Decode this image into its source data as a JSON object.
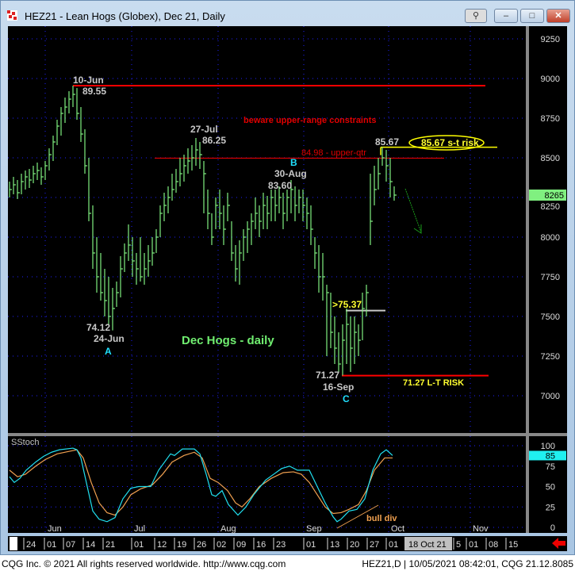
{
  "window": {
    "title": "HEZ21 - Lean Hogs (Globex), Dec 21, Daily",
    "buttons": {
      "link": "link-icon",
      "minimize": "–",
      "maximize": "□",
      "close": "✕"
    }
  },
  "footer": {
    "left": "CQG Inc. © 2021 All rights reserved worldwide. http://www.cqg.com",
    "right": "HEZ21,D | 10/05/2021 08:42:01, CQG 21.12.8085"
  },
  "colors": {
    "bars": "#80f080",
    "fast_stoch": "#20e0f0",
    "slow_stoch": "#f0a050",
    "grid": "#2020ff",
    "background": "#000000",
    "risk_line": "#ff0000",
    "st_risk": "#ffff00"
  },
  "annotations": {
    "jun10_date": "10-Jun",
    "jun10_price": "89.55",
    "jul27_date": "27-Jul",
    "jul27_price": "86.25",
    "beware": "beware upper-range constraints",
    "upper_qtr": "84.98 - upper-qtr",
    "high_recent": "85.67",
    "st_risk": "85.67 s-t risk",
    "b_label": "B",
    "aug30_date": "30-Aug",
    "aug30_price": "83.60",
    "gt7537": ">75.37",
    "jun24_price": "74.12",
    "jun24_date": "24-Jun",
    "a_label": "A",
    "chart_title": "Dec Hogs - daily",
    "sep16_price": "71.27",
    "sep16_date": "16-Sep",
    "c_label": "C",
    "lt_risk": "71.27 L-T RISK",
    "bull_div": "bull div",
    "stoch_title": "SStoch"
  },
  "chart_data": {
    "type": "ohlc-bar",
    "symbol": "HEZ21",
    "last_price": "8265",
    "last_stoch": "85",
    "price_axis": {
      "ticks": [
        "9250",
        "9000",
        "8750",
        "8500",
        "8250",
        "8000",
        "7750",
        "7500",
        "7250",
        "7000"
      ],
      "range": [
        6850,
        9400
      ]
    },
    "stoch_axis": {
      "ticks": [
        "100",
        "75",
        "50",
        "25",
        "0"
      ],
      "range": [
        0,
        100
      ]
    },
    "month_labels": [
      "Jun",
      "Jul",
      "Aug",
      "Sep",
      "Oct",
      "Nov"
    ],
    "date_labels": [
      "24",
      "01",
      "07",
      "14",
      "21",
      "01",
      "12",
      "19",
      "26",
      "02",
      "09",
      "16",
      "23",
      "01",
      "13",
      "20",
      "27",
      "01",
      "18 Oct 21",
      "5",
      "01",
      "08",
      "15"
    ],
    "levels": {
      "jun10_high": 8955,
      "upper_qtr": 8498,
      "st_risk": 8567,
      "breakout": 7537,
      "lt_risk": 7127
    },
    "high": [
      8350,
      8380,
      8360,
      8400,
      8420,
      8430,
      8450,
      8470,
      8440,
      8480,
      8560,
      8640,
      8740,
      8820,
      8880,
      8920,
      8955,
      8940,
      8820,
      8680,
      8500,
      8200,
      8000,
      7900,
      7800,
      7750,
      7680,
      7720,
      7880,
      7960,
      8080,
      8000,
      7900,
      8000,
      7900,
      7950,
      8000,
      8050,
      8200,
      8280,
      8320,
      8400,
      8430,
      8500,
      8520,
      8560,
      8580,
      8625,
      8600,
      8480,
      8300,
      8150,
      8250,
      8300,
      8200,
      8280,
      8100,
      7950,
      7980,
      8050,
      8100,
      8150,
      8250,
      8200,
      8280,
      8260,
      8300,
      8300,
      8320,
      8280,
      8300,
      8360,
      8320,
      8300,
      8300,
      8250,
      8200,
      8000,
      7950,
      7900,
      7700,
      7650,
      7500,
      7400,
      7450,
      7550,
      7500,
      7500,
      7450,
      7650,
      7700,
      8400,
      8450,
      8500,
      8567,
      8550,
      8500,
      8320
    ],
    "low": [
      8250,
      8270,
      8240,
      8270,
      8300,
      8310,
      8340,
      8360,
      8330,
      8360,
      8420,
      8480,
      8580,
      8640,
      8720,
      8780,
      8820,
      8740,
      8600,
      8400,
      8100,
      7800,
      7650,
      7600,
      7500,
      7450,
      7412,
      7560,
      7620,
      7780,
      7850,
      7750,
      7700,
      7720,
      7700,
      7750,
      7820,
      7900,
      8000,
      8100,
      8150,
      8230,
      8280,
      8320,
      8350,
      8400,
      8420,
      8450,
      8430,
      8150,
      8050,
      7950,
      8050,
      8050,
      7950,
      8100,
      7850,
      7720,
      7700,
      7850,
      7900,
      7950,
      8050,
      8000,
      8050,
      8050,
      8100,
      8100,
      8150,
      8050,
      8100,
      8150,
      8100,
      8150,
      8100,
      8050,
      7950,
      7800,
      7650,
      7600,
      7250,
      7300,
      7200,
      7150,
      7127,
      7200,
      7150,
      7200,
      7250,
      7350,
      7500,
      7950,
      8200,
      8300,
      8450,
      8350,
      8250,
      8230
    ],
    "close": [
      8300,
      8330,
      8280,
      8350,
      8380,
      8360,
      8400,
      8420,
      8380,
      8450,
      8520,
      8600,
      8700,
      8780,
      8820,
      8870,
      8900,
      8780,
      8650,
      8450,
      8150,
      7900,
      7750,
      7650,
      7600,
      7500,
      7550,
      7650,
      7800,
      7900,
      7950,
      7850,
      7800,
      7750,
      7800,
      7850,
      7900,
      8000,
      8150,
      8200,
      8250,
      8300,
      8350,
      8400,
      8450,
      8480,
      8500,
      8550,
      8520,
      8400,
      8150,
      8000,
      8200,
      8150,
      8050,
      8200,
      7900,
      7800,
      7900,
      8000,
      8050,
      8100,
      8150,
      8100,
      8200,
      8150,
      8250,
      8200,
      8250,
      8150,
      8250,
      8300,
      8200,
      8250,
      8200,
      8150,
      8050,
      7900,
      7750,
      7750,
      7650,
      7400,
      7300,
      7200,
      7350,
      7450,
      7300,
      7400,
      7350,
      7550,
      7650,
      8100,
      8300,
      8400,
      8500,
      8450,
      8350,
      8265
    ],
    "stoch_fast": [
      [
        0,
        62
      ],
      [
        1.2,
        55
      ],
      [
        2.6,
        60
      ],
      [
        4.2,
        70
      ],
      [
        6.6,
        80
      ],
      [
        8.6,
        87
      ],
      [
        10.6,
        92
      ],
      [
        12.6,
        95
      ],
      [
        16,
        97
      ],
      [
        17,
        95
      ],
      [
        18,
        85
      ],
      [
        19.6,
        50
      ],
      [
        21,
        20
      ],
      [
        22.6,
        10
      ],
      [
        24.6,
        7
      ],
      [
        26.6,
        12
      ],
      [
        28.6,
        35
      ],
      [
        30.6,
        48
      ],
      [
        32.6,
        50
      ],
      [
        35.6,
        50
      ],
      [
        37.6,
        70
      ],
      [
        40.6,
        90
      ],
      [
        41.6,
        88
      ],
      [
        43.6,
        96
      ],
      [
        46.6,
        96
      ],
      [
        48,
        90
      ],
      [
        49.6,
        65
      ],
      [
        51,
        40
      ],
      [
        52,
        38
      ],
      [
        53.6,
        45
      ],
      [
        55.2,
        28
      ],
      [
        57.6,
        15
      ],
      [
        59.6,
        25
      ],
      [
        61.6,
        40
      ],
      [
        64.6,
        58
      ],
      [
        66.6,
        65
      ],
      [
        68.6,
        72
      ],
      [
        70.6,
        75
      ],
      [
        72.6,
        70
      ],
      [
        75.6,
        70
      ],
      [
        77.6,
        50
      ],
      [
        79.6,
        30
      ],
      [
        81.6,
        13
      ],
      [
        82.6,
        7
      ],
      [
        83.6,
        10
      ],
      [
        85.6,
        20
      ],
      [
        87.6,
        22
      ],
      [
        89.6,
        35
      ],
      [
        91.6,
        70
      ],
      [
        93.6,
        90
      ],
      [
        95,
        95
      ],
      [
        96.6,
        88
      ]
    ],
    "stoch_slow": [
      [
        0,
        70
      ],
      [
        2,
        62
      ],
      [
        4,
        65
      ],
      [
        6.6,
        75
      ],
      [
        9,
        83
      ],
      [
        12,
        90
      ],
      [
        15,
        93
      ],
      [
        17,
        95
      ],
      [
        18.6,
        85
      ],
      [
        20.6,
        55
      ],
      [
        22.6,
        30
      ],
      [
        24.6,
        18
      ],
      [
        26.6,
        15
      ],
      [
        28.6,
        25
      ],
      [
        30.6,
        40
      ],
      [
        33,
        47
      ],
      [
        36,
        52
      ],
      [
        38.6,
        65
      ],
      [
        41,
        80
      ],
      [
        44,
        88
      ],
      [
        46.6,
        92
      ],
      [
        48.6,
        85
      ],
      [
        50.6,
        60
      ],
      [
        52.6,
        55
      ],
      [
        55,
        45
      ],
      [
        57,
        30
      ],
      [
        58.6,
        25
      ],
      [
        60.6,
        35
      ],
      [
        63,
        50
      ],
      [
        66,
        60
      ],
      [
        69,
        67
      ],
      [
        71.6,
        68
      ],
      [
        73.6,
        65
      ],
      [
        75.6,
        55
      ],
      [
        77.6,
        40
      ],
      [
        79.6,
        25
      ],
      [
        81.6,
        17
      ],
      [
        83.6,
        18
      ],
      [
        85.6,
        22
      ],
      [
        88,
        28
      ],
      [
        90,
        45
      ],
      [
        92,
        70
      ],
      [
        94.6,
        85
      ],
      [
        96.6,
        85
      ]
    ]
  }
}
